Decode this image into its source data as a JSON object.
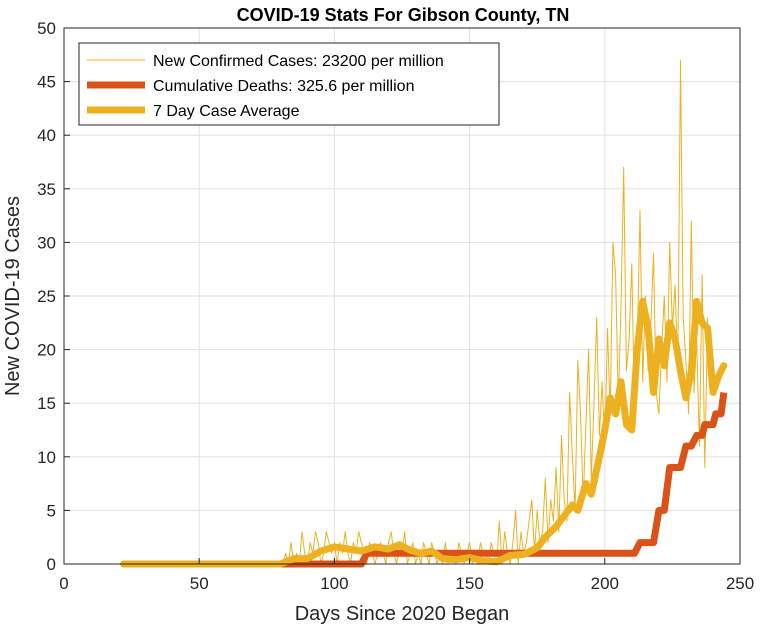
{
  "colors": {
    "new_cases": "#EDB120",
    "deaths": "#D95319",
    "avg": "#EDB120",
    "grid": "#E0E0E0",
    "axis": "#262626"
  },
  "chart_data": {
    "type": "line",
    "title": "COVID-19 Stats For Gibson County, TN",
    "xlabel": "Days Since 2020 Began",
    "ylabel": "New COVID-19 Cases",
    "xlim": [
      0,
      250
    ],
    "ylim": [
      0,
      50
    ],
    "xticks": [
      0,
      50,
      100,
      150,
      200,
      250
    ],
    "yticks": [
      0,
      5,
      10,
      15,
      20,
      25,
      30,
      35,
      40,
      45,
      50
    ],
    "grid": true,
    "legend_position": "top-left",
    "series": [
      {
        "name": "New Confirmed Cases: 23200 per million",
        "style": "thin",
        "x_start": 22,
        "values": [
          0,
          0,
          0,
          0,
          0,
          0,
          0,
          0,
          0,
          0,
          0,
          0,
          0,
          0,
          0,
          0,
          0,
          0,
          0,
          0,
          0,
          0,
          0,
          0,
          0,
          0,
          0,
          0,
          0,
          0,
          0,
          0,
          0,
          0,
          0,
          0,
          0,
          0,
          0,
          0,
          0,
          0,
          0,
          0,
          0,
          0,
          0,
          0,
          0,
          0,
          0,
          0,
          0,
          0,
          0,
          0,
          0,
          0,
          0,
          0,
          1,
          0,
          2,
          0,
          1,
          0,
          3,
          1,
          0,
          2,
          1,
          3,
          2,
          0,
          1,
          3,
          2,
          1,
          2,
          0,
          2,
          1,
          3,
          1,
          0,
          2,
          1,
          3,
          2,
          1,
          0,
          2,
          1,
          0,
          1,
          2,
          1,
          0,
          2,
          3,
          1,
          0,
          2,
          1,
          3,
          0,
          1,
          2,
          0,
          1,
          0,
          2,
          1,
          0,
          2,
          1,
          0,
          1,
          0,
          2,
          0,
          1,
          1,
          0,
          2,
          1,
          0,
          1,
          2,
          0,
          1,
          0,
          2,
          1,
          1,
          0,
          2,
          1,
          0,
          4,
          0,
          3,
          1,
          0,
          2,
          5,
          0,
          3,
          1,
          2,
          4,
          6,
          1,
          5,
          2,
          3,
          8,
          2,
          6,
          4,
          9,
          3,
          12,
          6,
          4,
          16,
          10,
          5,
          19,
          14,
          6,
          13,
          20,
          8,
          15,
          23,
          12,
          17,
          11,
          22,
          14,
          30,
          27,
          15,
          24,
          37,
          18,
          21,
          28,
          14,
          20,
          33,
          17,
          25,
          18,
          22,
          29,
          16,
          14,
          20,
          25,
          17,
          30,
          22,
          26,
          18,
          47,
          23,
          19,
          14,
          32,
          16,
          21,
          11,
          27,
          9,
          23
        ],
        "color_key": "new_cases"
      },
      {
        "name": "Cumulative Deaths: 325.6 per million",
        "style": "thick",
        "points": [
          [
            22,
            0
          ],
          [
            110,
            0
          ],
          [
            112,
            1
          ],
          [
            211,
            1
          ],
          [
            213,
            2
          ],
          [
            218,
            2
          ],
          [
            220,
            5
          ],
          [
            222,
            5
          ],
          [
            224,
            9
          ],
          [
            228,
            9
          ],
          [
            230,
            11
          ],
          [
            232,
            11
          ],
          [
            234,
            12
          ],
          [
            236,
            12
          ],
          [
            237,
            13
          ],
          [
            240,
            13
          ],
          [
            241,
            14
          ],
          [
            243,
            14
          ],
          [
            244,
            16
          ]
        ],
        "color_key": "deaths"
      },
      {
        "name": "7 Day Case Average",
        "style": "thick",
        "points": [
          [
            22,
            0
          ],
          [
            80,
            0
          ],
          [
            85,
            0.5
          ],
          [
            90,
            0.5
          ],
          [
            95,
            1.2
          ],
          [
            100,
            1.6
          ],
          [
            105,
            1.4
          ],
          [
            110,
            1.2
          ],
          [
            115,
            1.6
          ],
          [
            120,
            1.4
          ],
          [
            124,
            1.8
          ],
          [
            128,
            1.3
          ],
          [
            132,
            1.0
          ],
          [
            136,
            1.2
          ],
          [
            140,
            0.5
          ],
          [
            145,
            0.4
          ],
          [
            150,
            0.6
          ],
          [
            155,
            0.3
          ],
          [
            160,
            0.2
          ],
          [
            165,
            0.8
          ],
          [
            170,
            0.9
          ],
          [
            175,
            1.5
          ],
          [
            178,
            2.5
          ],
          [
            182,
            3.5
          ],
          [
            185,
            4.5
          ],
          [
            188,
            5.5
          ],
          [
            190,
            5.0
          ],
          [
            193,
            7.5
          ],
          [
            195,
            6.5
          ],
          [
            198,
            10
          ],
          [
            200,
            12.5
          ],
          [
            202,
            15.5
          ],
          [
            204,
            14
          ],
          [
            206,
            17
          ],
          [
            208,
            13
          ],
          [
            210,
            12.5
          ],
          [
            212,
            20
          ],
          [
            214,
            24.5
          ],
          [
            216,
            22
          ],
          [
            218,
            16
          ],
          [
            220,
            21
          ],
          [
            222,
            18.5
          ],
          [
            224,
            22.5
          ],
          [
            226,
            21
          ],
          [
            228,
            18
          ],
          [
            230,
            15.5
          ],
          [
            232,
            18
          ],
          [
            234,
            24.5
          ],
          [
            236,
            22.5
          ],
          [
            238,
            22
          ],
          [
            240,
            16
          ],
          [
            242,
            17.5
          ],
          [
            244,
            18.5
          ]
        ],
        "color_key": "avg"
      }
    ]
  }
}
